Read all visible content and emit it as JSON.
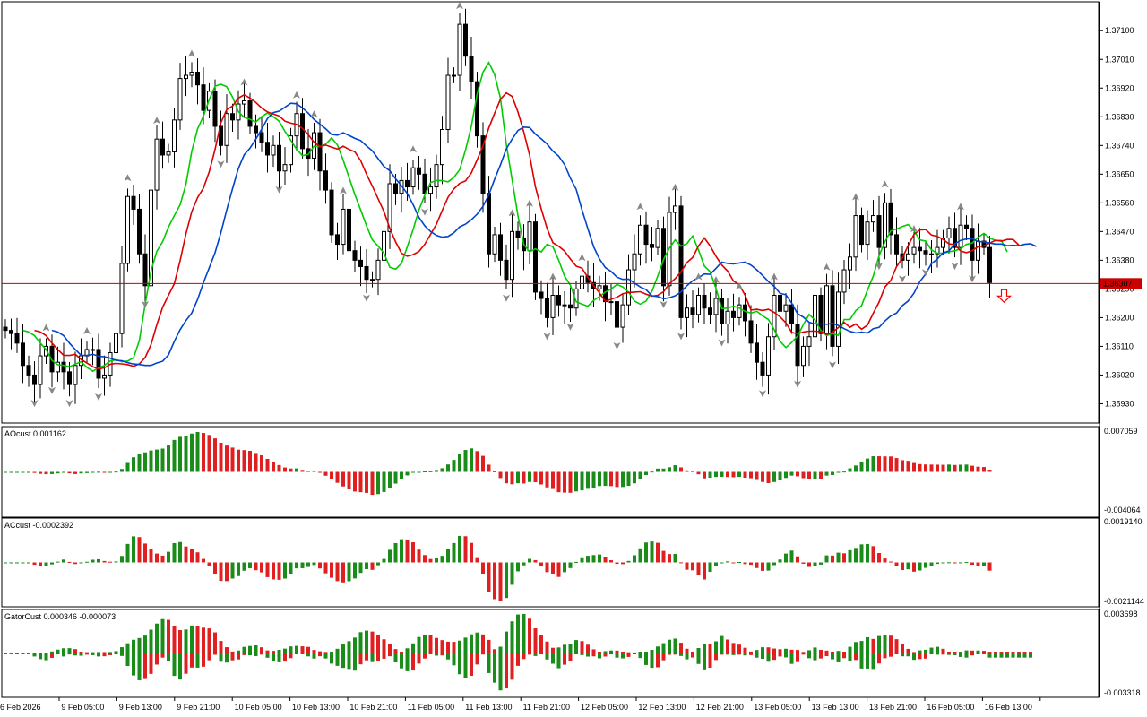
{
  "chart_data": {
    "type": "candlestick",
    "symbol_price_line": {
      "value": 1.36307,
      "label": "1.36307",
      "color": "#cc0000"
    },
    "price_axis": {
      "ylim": [
        1.35875,
        1.37185
      ],
      "ticks": [
        "1.37100",
        "1.37010",
        "1.36920",
        "1.36830",
        "1.36740",
        "1.36650",
        "1.36560",
        "1.36470",
        "1.36380",
        "1.36290",
        "1.36200",
        "1.36110",
        "1.36020",
        "1.35930"
      ]
    },
    "time_axis": {
      "labels": [
        "6 Feb 2026",
        "9 Feb 05:00",
        "9 Feb 13:00",
        "9 Feb 21:00",
        "10 Feb 05:00",
        "10 Feb 13:00",
        "10 Feb 21:00",
        "11 Feb 05:00",
        "11 Feb 13:00",
        "11 Feb 21:00",
        "12 Feb 05:00",
        "12 Feb 13:00",
        "12 Feb 21:00",
        "13 Feb 05:00",
        "13 Feb 13:00",
        "13 Feb 21:00",
        "16 Feb 05:00",
        "16 Feb 13:00"
      ]
    },
    "candles_close": [
      1.3616,
      1.3615,
      1.3612,
      1.3605,
      1.3602,
      1.3599,
      1.3608,
      1.3611,
      1.3603,
      1.3606,
      1.3603,
      1.3599,
      1.3605,
      1.3608,
      1.361,
      1.361,
      1.3601,
      1.3602,
      1.3609,
      1.3615,
      1.3637,
      1.3658,
      1.3654,
      1.364,
      1.363,
      1.366,
      1.3676,
      1.3671,
      1.3672,
      1.3682,
      1.3695,
      1.3696,
      1.3697,
      1.3693,
      1.3685,
      1.3691,
      1.368,
      1.3674,
      1.3684,
      1.3682,
      1.3687,
      1.3688,
      1.368,
      1.3678,
      1.3675,
      1.3671,
      1.3674,
      1.3666,
      1.3668,
      1.3677,
      1.3684,
      1.3673,
      1.367,
      1.3678,
      1.3666,
      1.366,
      1.3646,
      1.3643,
      1.3654,
      1.3641,
      1.3638,
      1.3636,
      1.3632,
      1.3632,
      1.3638,
      1.3647,
      1.3662,
      1.3659,
      1.3663,
      1.3661,
      1.3667,
      1.3665,
      1.3659,
      1.3661,
      1.3668,
      1.3679,
      1.3696,
      1.3696,
      1.3712,
      1.3702,
      1.3694,
      1.3677,
      1.3659,
      1.364,
      1.3646,
      1.3638,
      1.3632,
      1.3647,
      1.3645,
      1.3641,
      1.365,
      1.3628,
      1.3626,
      1.362,
      1.3627,
      1.3624,
      1.3624,
      1.3623,
      1.3629,
      1.3633,
      1.3631,
      1.3629,
      1.363,
      1.3625,
      1.3625,
      1.3617,
      1.3624,
      1.3635,
      1.364,
      1.3649,
      1.3643,
      1.3642,
      1.3648,
      1.363,
      1.3653,
      1.3655,
      1.362,
      1.3623,
      1.3621,
      1.3627,
      1.3623,
      1.3621,
      1.3626,
      1.3618,
      1.3622,
      1.362,
      1.3624,
      1.3619,
      1.3612,
      1.3606,
      1.3602,
      1.3614,
      1.3627,
      1.3622,
      1.3624,
      1.3618,
      1.3605,
      1.3611,
      1.3614,
      1.3627,
      1.3615,
      1.363,
      1.3611,
      1.3628,
      1.3635,
      1.3639,
      1.3652,
      1.3643,
      1.365,
      1.3652,
      1.3642,
      1.3656,
      1.3646,
      1.364,
      1.3638,
      1.364,
      1.3642,
      1.3641,
      1.364,
      1.364,
      1.3642,
      1.3645,
      1.3648,
      1.3642,
      1.3649,
      1.3648,
      1.3638,
      1.3644,
      1.3642,
      1.3631
    ],
    "moving_averages": [
      {
        "color": "#00cc00",
        "role": "fast"
      },
      {
        "color": "#dd0000",
        "role": "medium"
      },
      {
        "color": "#0044cc",
        "role": "slow"
      }
    ],
    "signals": {
      "up_arrow_color": "#888888",
      "down_arrow_color": "#888888",
      "sell_arrow_color": "#ff0000"
    },
    "indicators": [
      {
        "name": "AOcust",
        "title": "AOcust 0.001162",
        "max_label": "0.007059",
        "min_label": "-0.004064",
        "style": "histogram",
        "up_color": "#1a8c1a",
        "down_color": "#e02020"
      },
      {
        "name": "ACcust",
        "title": "ACcust -0.0002392",
        "max_label": "0.0019140",
        "min_label": "-0.0021144",
        "style": "histogram",
        "up_color": "#1a8c1a",
        "down_color": "#e02020"
      },
      {
        "name": "GatorCust",
        "title": "GatorCust 0.000346 -0.000073",
        "max_label": "0.003698",
        "min_label": "-0.003318",
        "style": "gator",
        "up_color": "#1a8c1a",
        "down_color": "#e02020"
      }
    ]
  }
}
